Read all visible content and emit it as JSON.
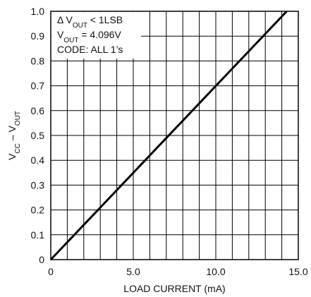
{
  "chart_data": {
    "type": "line",
    "title": "",
    "xlabel": "LOAD CURRENT (mA)",
    "ylabel": {
      "parts": [
        {
          "text": "V",
          "sub": false
        },
        {
          "text": "CC",
          "sub": true
        },
        {
          "text": " – V",
          "sub": false
        },
        {
          "text": "OUT",
          "sub": true
        }
      ]
    },
    "xlim": [
      0,
      15
    ],
    "ylim": [
      0,
      1.0
    ],
    "x_ticks": [
      0,
      5,
      10,
      15
    ],
    "x_tick_labels": [
      "0",
      "5.0",
      "10.0",
      "15.0"
    ],
    "x_gridlines": [
      0,
      1,
      2,
      3,
      4,
      5,
      6,
      7,
      8,
      9,
      10,
      11,
      12,
      13,
      14,
      15
    ],
    "y_ticks": [
      0,
      0.1,
      0.2,
      0.3,
      0.4,
      0.5,
      0.6,
      0.7,
      0.8,
      0.9,
      1.0
    ],
    "y_tick_labels": [
      "0",
      "0.1",
      "0.2",
      "0.3",
      "0.4",
      "0.5",
      "0.6",
      "0.7",
      "0.8",
      "0.9",
      "1.0"
    ],
    "grid": true,
    "series": [
      {
        "x": [
          0,
          14.3
        ],
        "y": [
          0,
          1.0
        ]
      }
    ],
    "annotation": {
      "position": "top-left",
      "lines": [
        [
          {
            "text": "Δ V",
            "sub": false
          },
          {
            "text": "OUT",
            "sub": true
          },
          {
            "text": " < 1LSB",
            "sub": false
          }
        ],
        [
          {
            "text": "V",
            "sub": false
          },
          {
            "text": "OUT",
            "sub": true
          },
          {
            "text": " = 4.096V",
            "sub": false
          }
        ],
        [
          {
            "text": "CODE: ALL 1’s",
            "sub": false
          }
        ]
      ]
    }
  }
}
